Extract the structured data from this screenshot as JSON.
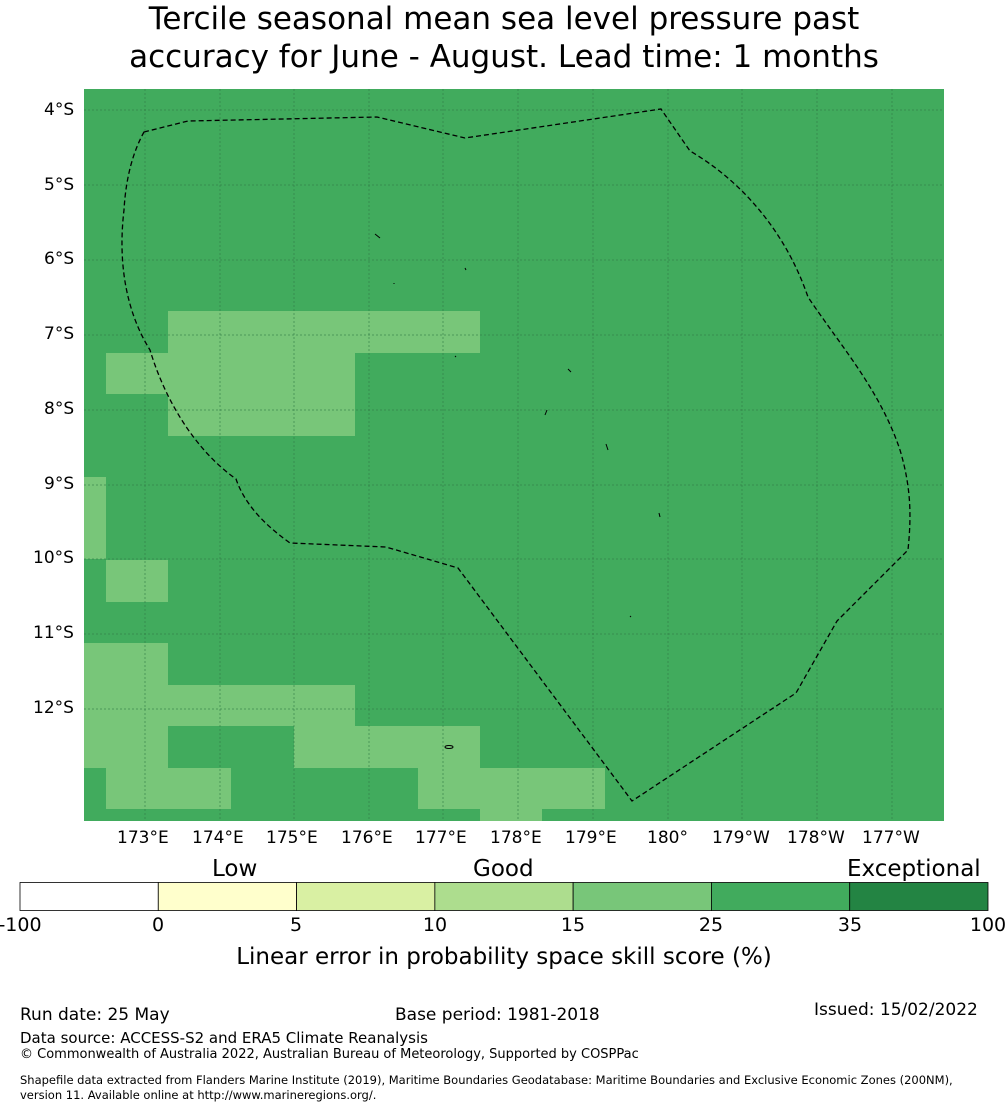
{
  "title": {
    "line1": "Tercile seasonal mean sea level pressure past",
    "line2": "accuracy for June - August. Lead time: 1 months"
  },
  "map": {
    "lat_labels": [
      "4°S",
      "5°S",
      "6°S",
      "7°S",
      "8°S",
      "9°S",
      "10°S",
      "11°S",
      "12°S"
    ],
    "lon_labels": [
      "173°E",
      "174°E",
      "175°E",
      "176°E",
      "177°E",
      "178°E",
      "179°E",
      "180°",
      "179°W",
      "178°W",
      "177°W"
    ],
    "colors": {
      "band_25_35": "#41ab5d",
      "band_15_25": "#78c679",
      "boundary": "#000000"
    }
  },
  "colorbar": {
    "categories": [
      "Low",
      "Good",
      "Exceptional"
    ],
    "ticks": [
      "-100",
      "0",
      "5",
      "10",
      "15",
      "25",
      "35",
      "100"
    ],
    "colors": [
      "#ffffff",
      "#ffffcc",
      "#d9f0a3",
      "#addd8e",
      "#78c679",
      "#41ab5d",
      "#238443"
    ],
    "title": "Linear error in probability space skill score (%)"
  },
  "footer": {
    "run_date": "Run date: 25 May",
    "base_period": "Base period: 1981-2018",
    "issued": "Issued: 15/02/2022",
    "data_source": "Data source: ACCESS-S2 and ERA5 Climate Reanalysis",
    "copyright": "© Commonwealth of Australia 2022, Australian Bureau of Meteorology, Supported by COSPPac",
    "shapefile_line1": "Shapefile data extracted from Flanders Marine Institute (2019), Maritime Boundaries Geodatabase: Maritime Boundaries and Exclusive Economic Zones (200NM),",
    "shapefile_line2": "version 11. Available online at http://www.marineregions.org/."
  }
}
